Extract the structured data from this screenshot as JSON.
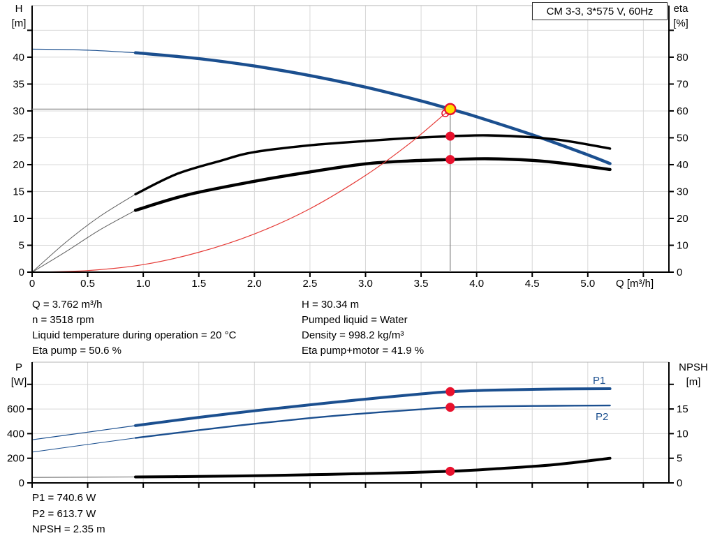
{
  "title_box": {
    "label": "CM 3-3, 3*575 V, 60Hz"
  },
  "colors": {
    "curve_blue": "#1b4f8f",
    "curve_black": "#000000",
    "thin_gray": "#5f5f5f",
    "system_red": "#e53935",
    "marker_red": "#e8112d",
    "duty_yellow": "#ffdf00",
    "guide_gray": "#808080",
    "grid": "#d8d8d8",
    "border_gray": "#b4b4b4"
  },
  "chart_data": [
    {
      "type": "line",
      "title": "",
      "xlabel": "Q [m³/h]",
      "x_axis": {
        "label": "Q [m³/h]",
        "ticks": [
          0,
          0.5,
          1.0,
          1.5,
          2.0,
          2.5,
          3.0,
          3.5,
          4.0,
          4.5,
          5.0
        ]
      },
      "left_axis": {
        "title": [
          "H",
          "[m]"
        ],
        "ticks": [
          0,
          5,
          10,
          15,
          20,
          25,
          30,
          35,
          40,
          45
        ],
        "max_labeled": 40,
        "range": [
          0,
          49.6
        ]
      },
      "right_axis": {
        "title": [
          "eta",
          "[%]"
        ],
        "ticks": [
          0,
          10,
          20,
          30,
          40,
          50,
          60,
          70,
          80,
          90
        ],
        "max_labeled": 80,
        "range": [
          0,
          99.2
        ]
      },
      "series": [
        {
          "name": "H curve",
          "axis": "left",
          "color": "#1b4f8f",
          "width": 4.4,
          "thin_width": 1.2,
          "split_q": 0.93,
          "points": [
            [
              0,
              41.5
            ],
            [
              0.5,
              41.3
            ],
            [
              0.93,
              40.82
            ],
            [
              1.5,
              39.73
            ],
            [
              2,
              38.35
            ],
            [
              2.5,
              36.58
            ],
            [
              3,
              34.42
            ],
            [
              3.5,
              31.86
            ],
            [
              3.762,
              30.34
            ],
            [
              4,
              28.91
            ],
            [
              4.5,
              25.56
            ],
            [
              5,
              21.83
            ],
            [
              5.2,
              20.2
            ]
          ]
        },
        {
          "name": "Eta pump",
          "axis": "right",
          "color": "#000000",
          "width": 3.4,
          "thin_width": 1,
          "thin_color": "#5f5f5f",
          "split_q": 0.93,
          "points": [
            [
              0,
              0
            ],
            [
              0.3,
              11
            ],
            [
              0.6,
              20.5
            ],
            [
              0.93,
              29
            ],
            [
              1.3,
              36.5
            ],
            [
              1.7,
              41.5
            ],
            [
              2,
              44.7
            ],
            [
              2.5,
              47.2
            ],
            [
              3,
              48.8
            ],
            [
              3.4,
              49.9
            ],
            [
              3.762,
              50.6
            ],
            [
              4.1,
              50.9
            ],
            [
              4.5,
              50.2
            ],
            [
              4.8,
              48.9
            ],
            [
              5.2,
              46
            ]
          ]
        },
        {
          "name": "Eta pump+motor",
          "axis": "right",
          "color": "#000000",
          "width": 4.4,
          "thin_width": 1,
          "thin_color": "#5f5f5f",
          "split_q": 0.93,
          "points": [
            [
              0,
              0
            ],
            [
              0.3,
              7.5
            ],
            [
              0.6,
              15.5
            ],
            [
              0.93,
              23
            ],
            [
              1.4,
              28.8
            ],
            [
              2,
              33.8
            ],
            [
              2.5,
              37.3
            ],
            [
              3,
              40.3
            ],
            [
              3.4,
              41.4
            ],
            [
              3.762,
              41.9
            ],
            [
              4.1,
              42.2
            ],
            [
              4.5,
              41.6
            ],
            [
              4.8,
              40.4
            ],
            [
              5.2,
              38.2
            ]
          ]
        },
        {
          "name": "System curve",
          "axis": "left",
          "color": "#e53935",
          "width": 1.2,
          "points": [
            [
              0,
              0
            ],
            [
              0.5,
              0.3
            ],
            [
              1,
              1.4
            ],
            [
              1.5,
              3.7
            ],
            [
              2,
              7.1
            ],
            [
              2.5,
              11.8
            ],
            [
              3,
              18
            ],
            [
              3.4,
              24
            ],
            [
              3.762,
              30.34
            ]
          ]
        }
      ],
      "duty_point": {
        "q": 3.762,
        "h": 30.34
      },
      "duty_markers": [
        {
          "axis": "right",
          "value": 50.6
        },
        {
          "axis": "right",
          "value": 41.9
        }
      ]
    },
    {
      "type": "line",
      "title": "",
      "x_axis": {
        "label": "",
        "ticks": []
      },
      "left_axis": {
        "title": [
          "P",
          "[W]"
        ],
        "ticks": [
          0,
          200,
          400,
          600,
          800
        ],
        "max_labeled": 600,
        "range": [
          0,
          980
        ]
      },
      "right_axis": {
        "title": [
          "NPSH",
          "[m]"
        ],
        "ticks": [
          0,
          5,
          10,
          15,
          20
        ],
        "max_labeled": 15,
        "range": [
          0,
          24.5
        ]
      },
      "series": [
        {
          "name": "P1",
          "axis": "left",
          "color": "#1b4f8f",
          "width": 4,
          "thin_width": 1.2,
          "split_q": 0.93,
          "points": [
            [
              0,
              350
            ],
            [
              0.5,
              412
            ],
            [
              0.93,
              465
            ],
            [
              1.5,
              532
            ],
            [
              2,
              585
            ],
            [
              2.5,
              634
            ],
            [
              3,
              680
            ],
            [
              3.5,
              722
            ],
            [
              3.762,
              740.6
            ],
            [
              4.2,
              754
            ],
            [
              4.7,
              762
            ],
            [
              5.2,
              765
            ]
          ]
        },
        {
          "name": "P2",
          "axis": "left",
          "color": "#1b4f8f",
          "width": 2.4,
          "thin_width": 1,
          "split_q": 0.93,
          "points": [
            [
              0,
              250
            ],
            [
              0.5,
              312
            ],
            [
              0.93,
              365
            ],
            [
              1.5,
              428
            ],
            [
              2,
              480
            ],
            [
              2.5,
              526
            ],
            [
              3,
              565
            ],
            [
              3.5,
              597
            ],
            [
              3.762,
              613.7
            ],
            [
              4.2,
              622
            ],
            [
              4.7,
              626
            ],
            [
              5.2,
              628
            ]
          ]
        },
        {
          "name": "NPSH",
          "axis": "right",
          "color": "#000000",
          "width": 4,
          "thin_width": 1.1,
          "thin_color": "#6a6a6a",
          "split_q": 0.93,
          "points": [
            [
              0,
              1.1
            ],
            [
              0.93,
              1.2
            ],
            [
              1.5,
              1.3
            ],
            [
              2,
              1.45
            ],
            [
              2.5,
              1.65
            ],
            [
              3,
              1.9
            ],
            [
              3.762,
              2.35
            ],
            [
              4.2,
              2.9
            ],
            [
              4.7,
              3.7
            ],
            [
              5.2,
              5.0
            ]
          ]
        }
      ],
      "duty_point": {
        "q": 3.762
      },
      "duty_markers": [
        {
          "axis": "left",
          "value": 740.6
        },
        {
          "axis": "left",
          "value": 613.7
        },
        {
          "axis": "right",
          "value": 2.35
        }
      ]
    }
  ],
  "info_panel": {
    "left": [
      "Q = 3.762 m³/h",
      "n = 3518 rpm",
      "Liquid temperature during operation = 20 °C",
      "Eta pump = 50.6 %"
    ],
    "right": [
      "H = 30.34 m",
      "Pumped liquid = Water",
      "Density = 998.2 kg/m³",
      "Eta pump+motor = 41.9 %"
    ]
  },
  "results_panel": {
    "lines": [
      "P1 = 740.6 W",
      "P2 = 613.7 W",
      "NPSH = 2.35 m"
    ]
  }
}
